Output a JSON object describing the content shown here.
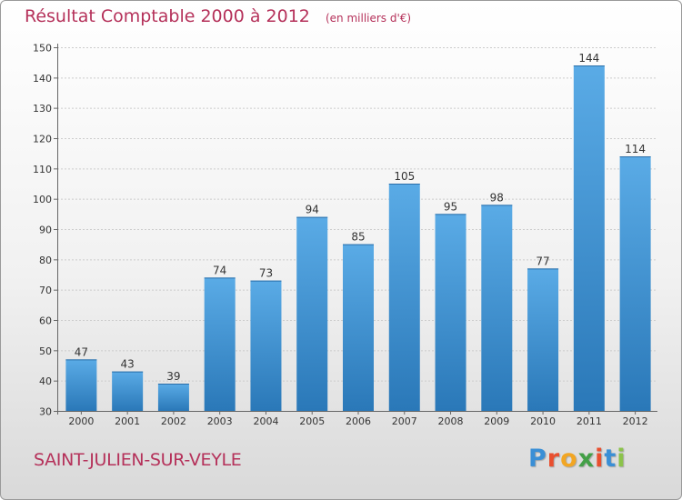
{
  "title": "Résultat Comptable 2000 à 2012",
  "unit_note": "(en milliers d'€)",
  "commune": "SAINT-JULIEN-SUR-VEYLE",
  "logo": {
    "text": "Proxiti",
    "letters": [
      "P",
      "r",
      "o",
      "x",
      "i",
      "t",
      "i"
    ]
  },
  "colors": {
    "bar_top": "#5aabe6",
    "bar_bottom": "#2a78b8",
    "title": "#b5315a",
    "grid": "#cccccc"
  },
  "chart_data": {
    "type": "bar",
    "title": "Résultat Comptable 2000 à 2012",
    "xlabel": "",
    "ylabel": "",
    "categories": [
      "2000",
      "2001",
      "2002",
      "2003",
      "2004",
      "2005",
      "2006",
      "2007",
      "2008",
      "2009",
      "2010",
      "2011",
      "2012"
    ],
    "values": [
      47,
      43,
      39,
      74,
      73,
      94,
      85,
      105,
      95,
      98,
      77,
      144,
      114
    ],
    "ylim": [
      30,
      150
    ],
    "yticks": [
      30,
      40,
      50,
      60,
      70,
      80,
      90,
      100,
      110,
      120,
      130,
      140,
      150
    ],
    "grid": true,
    "data_labels": true
  }
}
